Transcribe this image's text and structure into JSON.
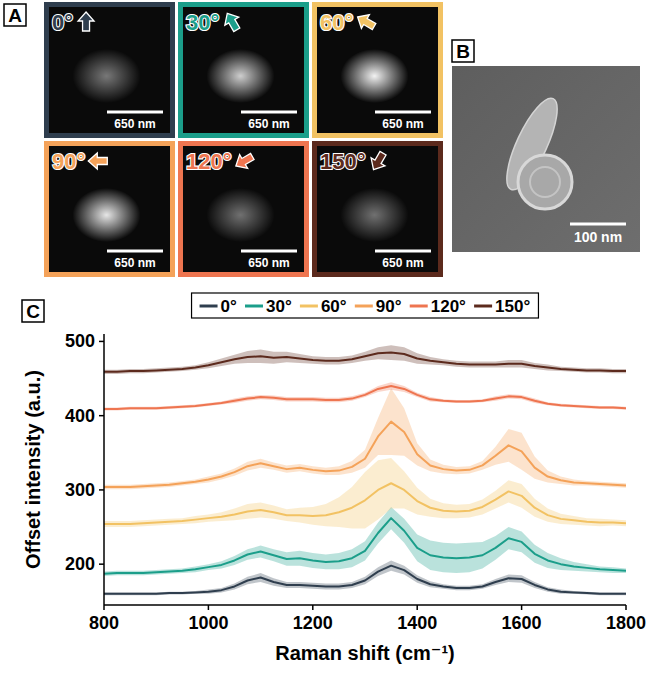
{
  "panel_a": {
    "panel_letter": "A",
    "tiles": [
      {
        "label": "0°",
        "angle": 0,
        "color": "#2f3e4e",
        "scale_label": "650 nm",
        "spot_intensity": 0.45
      },
      {
        "label": "30°",
        "angle": 30,
        "color": "#1b9e8a",
        "scale_label": "650 nm",
        "spot_intensity": 0.8
      },
      {
        "label": "60°",
        "angle": 60,
        "color": "#f2c263",
        "scale_label": "650 nm",
        "spot_intensity": 0.95
      },
      {
        "label": "90°",
        "angle": 90,
        "color": "#f4a259",
        "scale_label": "650 nm",
        "spot_intensity": 0.9
      },
      {
        "label": "120°",
        "angle": 120,
        "color": "#ee7550",
        "scale_label": "650 nm",
        "spot_intensity": 0.42
      },
      {
        "label": "150°",
        "angle": 150,
        "color": "#5c2a1d",
        "scale_label": "650 nm",
        "spot_intensity": 0.42
      }
    ]
  },
  "panel_b": {
    "panel_letter": "B",
    "scale_label": "100 nm"
  },
  "chart_data": {
    "panel_letter": "C",
    "type": "line",
    "xlabel": "Raman shift (cm⁻¹)",
    "ylabel": "Offset intensity (a.u.)",
    "legend": "top",
    "x": [
      800,
      825,
      850,
      875,
      900,
      925,
      950,
      975,
      1000,
      1025,
      1050,
      1075,
      1100,
      1125,
      1150,
      1175,
      1200,
      1225,
      1250,
      1275,
      1300,
      1325,
      1350,
      1375,
      1400,
      1425,
      1450,
      1475,
      1500,
      1525,
      1550,
      1575,
      1600,
      1625,
      1650,
      1675,
      1700,
      1725,
      1750,
      1775,
      1800
    ],
    "xlim": [
      800,
      1800
    ],
    "xticks": [
      800,
      1000,
      1200,
      1400,
      1600,
      1800
    ],
    "ylim": [
      145,
      510
    ],
    "yticks": [
      200,
      300,
      400,
      500
    ],
    "series": [
      {
        "name": "0°",
        "color": "#2f3e4e",
        "values": [
          160,
          160,
          160,
          160,
          160,
          161,
          161,
          162,
          163,
          165,
          170,
          178,
          182,
          176,
          172,
          172,
          171,
          170,
          170,
          172,
          178,
          190,
          198,
          192,
          180,
          173,
          170,
          168,
          168,
          170,
          176,
          181,
          180,
          172,
          166,
          163,
          162,
          161,
          160,
          160,
          160
        ],
        "error": [
          2,
          2,
          2,
          2,
          2,
          2,
          2,
          2,
          3,
          3,
          4,
          5,
          6,
          5,
          4,
          4,
          4,
          4,
          4,
          4,
          5,
          6,
          7,
          6,
          5,
          4,
          3,
          3,
          3,
          3,
          4,
          5,
          5,
          4,
          3,
          3,
          2,
          2,
          2,
          2,
          2
        ]
      },
      {
        "name": "30°",
        "color": "#1b9e8a",
        "values": [
          187,
          188,
          188,
          188,
          189,
          190,
          191,
          193,
          196,
          199,
          205,
          213,
          217,
          212,
          207,
          208,
          205,
          203,
          204,
          208,
          218,
          242,
          262,
          245,
          222,
          212,
          209,
          208,
          209,
          212,
          222,
          235,
          230,
          214,
          205,
          200,
          197,
          195,
          193,
          192,
          191
        ],
        "error": [
          3,
          3,
          3,
          3,
          3,
          3,
          3,
          4,
          4,
          5,
          6,
          7,
          8,
          8,
          9,
          10,
          10,
          10,
          11,
          12,
          13,
          14,
          15,
          16,
          18,
          20,
          20,
          20,
          20,
          18,
          16,
          15,
          14,
          12,
          10,
          8,
          6,
          5,
          4,
          4,
          3
        ]
      },
      {
        "name": "60°",
        "color": "#f2c263",
        "values": [
          254,
          254,
          254,
          255,
          256,
          257,
          258,
          260,
          262,
          264,
          267,
          271,
          273,
          270,
          266,
          266,
          265,
          266,
          270,
          276,
          286,
          300,
          309,
          300,
          285,
          276,
          272,
          271,
          272,
          277,
          287,
          298,
          292,
          276,
          266,
          261,
          259,
          257,
          256,
          256,
          255
        ],
        "error": [
          4,
          4,
          4,
          4,
          4,
          4,
          4,
          5,
          5,
          6,
          8,
          10,
          10,
          9,
          8,
          10,
          12,
          15,
          20,
          28,
          38,
          40,
          34,
          25,
          18,
          12,
          10,
          9,
          9,
          10,
          12,
          15,
          16,
          12,
          9,
          7,
          6,
          5,
          5,
          4,
          4
        ]
      },
      {
        "name": "90°",
        "color": "#f4a259",
        "values": [
          304,
          304,
          304,
          305,
          306,
          307,
          309,
          311,
          314,
          318,
          324,
          332,
          336,
          332,
          328,
          330,
          327,
          325,
          326,
          331,
          342,
          372,
          392,
          378,
          348,
          333,
          328,
          326,
          327,
          333,
          346,
          360,
          352,
          330,
          318,
          313,
          310,
          309,
          308,
          307,
          306
        ],
        "error": [
          3,
          3,
          3,
          3,
          3,
          3,
          3,
          3,
          4,
          4,
          5,
          6,
          6,
          5,
          5,
          5,
          5,
          5,
          6,
          8,
          12,
          25,
          45,
          32,
          15,
          8,
          6,
          5,
          5,
          6,
          12,
          22,
          25,
          15,
          8,
          5,
          4,
          3,
          3,
          3,
          3
        ]
      },
      {
        "name": "120°",
        "color": "#ee7550",
        "values": [
          409,
          409,
          410,
          410,
          410,
          411,
          412,
          413,
          415,
          417,
          420,
          423,
          425,
          424,
          422,
          422,
          422,
          421,
          421,
          423,
          428,
          436,
          440,
          436,
          428,
          422,
          420,
          419,
          419,
          420,
          423,
          426,
          425,
          420,
          416,
          414,
          413,
          412,
          411,
          411,
          410
        ],
        "error": [
          2,
          2,
          2,
          2,
          2,
          2,
          2,
          2,
          2,
          2,
          3,
          3,
          3,
          3,
          3,
          3,
          3,
          3,
          3,
          3,
          3,
          4,
          5,
          4,
          3,
          3,
          2,
          2,
          2,
          2,
          3,
          3,
          3,
          3,
          2,
          2,
          2,
          2,
          2,
          2,
          2
        ]
      },
      {
        "name": "150°",
        "color": "#5c2a1d",
        "values": [
          459,
          459,
          460,
          460,
          461,
          462,
          463,
          465,
          468,
          472,
          476,
          479,
          480,
          478,
          479,
          477,
          475,
          474,
          474,
          476,
          480,
          484,
          485,
          483,
          477,
          474,
          472,
          470,
          469,
          469,
          469,
          470,
          470,
          467,
          465,
          463,
          462,
          461,
          461,
          460,
          460
        ],
        "error": [
          3,
          3,
          3,
          3,
          3,
          3,
          3,
          3,
          4,
          5,
          6,
          8,
          9,
          8,
          7,
          6,
          5,
          5,
          5,
          5,
          6,
          8,
          10,
          9,
          7,
          5,
          4,
          4,
          4,
          4,
          4,
          5,
          5,
          4,
          4,
          3,
          3,
          3,
          3,
          3,
          3
        ]
      }
    ]
  }
}
